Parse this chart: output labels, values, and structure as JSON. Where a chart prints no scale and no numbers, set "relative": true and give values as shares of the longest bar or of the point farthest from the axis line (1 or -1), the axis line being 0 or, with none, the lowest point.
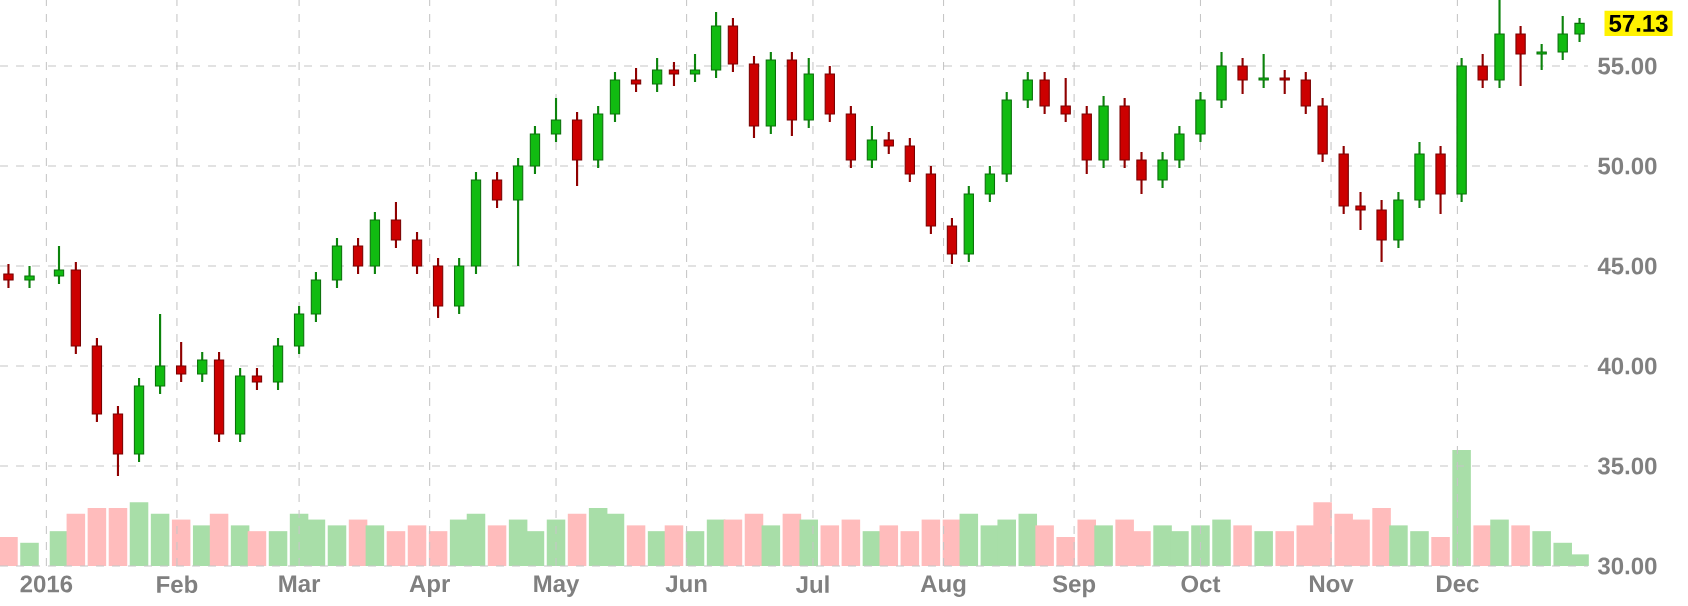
{
  "chart_data": [
    {
      "type": "candlestick",
      "x": [
        "2015-12-23",
        "2015-12-28",
        "2016-01-04",
        "2016-01-08",
        "2016-01-13",
        "2016-01-18",
        "2016-01-23",
        "2016-01-28",
        "2016-02-02",
        "2016-02-07",
        "2016-02-11",
        "2016-02-16",
        "2016-02-20",
        "2016-02-25",
        "2016-03-01",
        "2016-03-05",
        "2016-03-10",
        "2016-03-15",
        "2016-03-19",
        "2016-03-24",
        "2016-03-29",
        "2016-04-03",
        "2016-04-08",
        "2016-04-12",
        "2016-04-17",
        "2016-04-22",
        "2016-04-26",
        "2016-05-01",
        "2016-05-06",
        "2016-05-11",
        "2016-05-15",
        "2016-05-20",
        "2016-05-25",
        "2016-05-29",
        "2016-06-03",
        "2016-06-08",
        "2016-06-12",
        "2016-06-17",
        "2016-06-21",
        "2016-06-26",
        "2016-06-30",
        "2016-07-05",
        "2016-07-10",
        "2016-07-15",
        "2016-07-19",
        "2016-07-24",
        "2016-07-29",
        "2016-08-03",
        "2016-08-07",
        "2016-08-12",
        "2016-08-16",
        "2016-08-21",
        "2016-08-25",
        "2016-08-30",
        "2016-09-04",
        "2016-09-08",
        "2016-09-13",
        "2016-09-17",
        "2016-09-22",
        "2016-09-26",
        "2016-10-01",
        "2016-10-06",
        "2016-10-11",
        "2016-10-16",
        "2016-10-21",
        "2016-10-26",
        "2016-10-30",
        "2016-11-04",
        "2016-11-08",
        "2016-11-13",
        "2016-11-17",
        "2016-11-22",
        "2016-11-27",
        "2016-12-02",
        "2016-12-07",
        "2016-12-11",
        "2016-12-16",
        "2016-12-21",
        "2016-12-26",
        "2016-12-30"
      ],
      "ohlc": [
        [
          44.6,
          45.1,
          43.9,
          44.3
        ],
        [
          44.3,
          45.0,
          43.9,
          44.5
        ],
        [
          44.5,
          46.0,
          44.1,
          44.8
        ],
        [
          44.8,
          45.2,
          40.6,
          41.0
        ],
        [
          41.0,
          41.4,
          37.2,
          37.6
        ],
        [
          37.6,
          38.0,
          34.5,
          35.6
        ],
        [
          35.6,
          39.4,
          35.2,
          39.0
        ],
        [
          39.0,
          42.6,
          38.6,
          40.0
        ],
        [
          40.0,
          41.2,
          39.2,
          39.6
        ],
        [
          39.6,
          40.7,
          39.2,
          40.3
        ],
        [
          40.3,
          40.7,
          36.2,
          36.6
        ],
        [
          36.6,
          39.9,
          36.2,
          39.5
        ],
        [
          39.5,
          39.9,
          38.8,
          39.2
        ],
        [
          39.2,
          41.4,
          38.8,
          41.0
        ],
        [
          41.0,
          43.0,
          40.6,
          42.6
        ],
        [
          42.6,
          44.7,
          42.2,
          44.3
        ],
        [
          44.3,
          46.4,
          43.9,
          46.0
        ],
        [
          46.0,
          46.4,
          44.6,
          45.0
        ],
        [
          45.0,
          47.7,
          44.6,
          47.3
        ],
        [
          47.3,
          48.2,
          45.9,
          46.3
        ],
        [
          46.3,
          46.7,
          44.6,
          45.0
        ],
        [
          45.0,
          45.4,
          42.4,
          43.0
        ],
        [
          43.0,
          45.4,
          42.6,
          45.0
        ],
        [
          45.0,
          49.7,
          44.6,
          49.3
        ],
        [
          49.3,
          49.7,
          47.9,
          48.3
        ],
        [
          48.3,
          50.4,
          45.0,
          50.0
        ],
        [
          50.0,
          52.0,
          49.6,
          51.6
        ],
        [
          51.6,
          53.4,
          51.2,
          52.3
        ],
        [
          52.3,
          52.7,
          49.0,
          50.3
        ],
        [
          50.3,
          53.0,
          49.9,
          52.6
        ],
        [
          52.6,
          54.7,
          52.2,
          54.3
        ],
        [
          54.3,
          54.9,
          53.7,
          54.1
        ],
        [
          54.1,
          55.4,
          53.7,
          54.8
        ],
        [
          54.8,
          55.2,
          54.0,
          54.6
        ],
        [
          54.6,
          55.6,
          54.2,
          54.8
        ],
        [
          54.8,
          57.7,
          54.4,
          57.0
        ],
        [
          57.0,
          57.4,
          54.7,
          55.1
        ],
        [
          55.1,
          55.5,
          51.4,
          52.0
        ],
        [
          52.0,
          55.7,
          51.6,
          55.3
        ],
        [
          55.3,
          55.7,
          51.5,
          52.3
        ],
        [
          52.3,
          55.4,
          51.9,
          54.6
        ],
        [
          54.6,
          55.0,
          52.2,
          52.6
        ],
        [
          52.6,
          53.0,
          49.9,
          50.3
        ],
        [
          50.3,
          52.0,
          49.9,
          51.3
        ],
        [
          51.3,
          51.7,
          50.6,
          51.0
        ],
        [
          51.0,
          51.4,
          49.2,
          49.6
        ],
        [
          49.6,
          50.0,
          46.6,
          47.0
        ],
        [
          47.0,
          47.4,
          45.1,
          45.6
        ],
        [
          45.6,
          49.0,
          45.2,
          48.6
        ],
        [
          48.6,
          50.0,
          48.2,
          49.6
        ],
        [
          49.6,
          53.7,
          49.2,
          53.3
        ],
        [
          53.3,
          54.7,
          52.9,
          54.3
        ],
        [
          54.3,
          54.7,
          52.6,
          53.0
        ],
        [
          53.0,
          54.4,
          52.2,
          52.6
        ],
        [
          52.6,
          53.0,
          49.6,
          50.3
        ],
        [
          50.3,
          53.5,
          49.9,
          53.0
        ],
        [
          53.0,
          53.4,
          49.9,
          50.3
        ],
        [
          50.3,
          50.7,
          48.6,
          49.3
        ],
        [
          49.3,
          50.7,
          48.9,
          50.3
        ],
        [
          50.3,
          52.0,
          49.9,
          51.6
        ],
        [
          51.6,
          53.7,
          51.2,
          53.3
        ],
        [
          53.3,
          55.7,
          52.9,
          55.0
        ],
        [
          55.0,
          55.4,
          53.6,
          54.3
        ],
        [
          54.3,
          55.6,
          53.9,
          54.4
        ],
        [
          54.4,
          54.8,
          53.6,
          54.3
        ],
        [
          54.3,
          54.7,
          52.6,
          53.0
        ],
        [
          53.0,
          53.4,
          50.2,
          50.6
        ],
        [
          50.6,
          51.0,
          47.6,
          48.0
        ],
        [
          48.0,
          48.7,
          46.8,
          47.8
        ],
        [
          47.8,
          48.3,
          45.2,
          46.3
        ],
        [
          46.3,
          48.7,
          45.9,
          48.3
        ],
        [
          48.3,
          51.2,
          47.9,
          50.6
        ],
        [
          50.6,
          51.0,
          47.6,
          48.6
        ],
        [
          48.6,
          55.4,
          48.2,
          55.0
        ],
        [
          55.0,
          55.6,
          53.9,
          54.3
        ],
        [
          54.3,
          58.3,
          53.9,
          56.6
        ],
        [
          56.6,
          57.0,
          54.0,
          55.6
        ],
        [
          55.6,
          56.1,
          54.8,
          55.7
        ],
        [
          55.7,
          57.5,
          55.3,
          56.6
        ],
        [
          56.6,
          57.4,
          56.2,
          57.13
        ]
      ],
      "colors": [
        "#cc0000",
        "#11bb11",
        "#11bb11",
        "#cc0000",
        "#cc0000",
        "#cc0000",
        "#11bb11",
        "#11bb11",
        "#cc0000",
        "#11bb11",
        "#cc0000",
        "#11bb11",
        "#cc0000",
        "#11bb11",
        "#11bb11",
        "#11bb11",
        "#11bb11",
        "#cc0000",
        "#11bb11",
        "#cc0000",
        "#cc0000",
        "#cc0000",
        "#11bb11",
        "#11bb11",
        "#cc0000",
        "#11bb11",
        "#11bb11",
        "#11bb11",
        "#cc0000",
        "#11bb11",
        "#11bb11",
        "#cc0000",
        "#11bb11",
        "#cc0000",
        "#11bb11",
        "#11bb11",
        "#cc0000",
        "#cc0000",
        "#11bb11",
        "#cc0000",
        "#11bb11",
        "#cc0000",
        "#cc0000",
        "#11bb11",
        "#cc0000",
        "#cc0000",
        "#cc0000",
        "#cc0000",
        "#11bb11",
        "#11bb11",
        "#11bb11",
        "#11bb11",
        "#cc0000",
        "#cc0000",
        "#cc0000",
        "#11bb11",
        "#cc0000",
        "#cc0000",
        "#11bb11",
        "#11bb11",
        "#11bb11",
        "#11bb11",
        "#cc0000",
        "#11bb11",
        "#cc0000",
        "#cc0000",
        "#cc0000",
        "#cc0000",
        "#cc0000",
        "#cc0000",
        "#11bb11",
        "#11bb11",
        "#cc0000",
        "#11bb11",
        "#cc0000",
        "#11bb11",
        "#cc0000",
        "#11bb11",
        "#11bb11",
        "#11bb11"
      ],
      "xlim": [
        "2015-12-21",
        "2017-01-01"
      ],
      "xticks": [
        {
          "value": "2016-01-01",
          "label": "2016"
        },
        {
          "value": "2016-02-01",
          "label": "Feb"
        },
        {
          "value": "2016-03-01",
          "label": "Mar"
        },
        {
          "value": "2016-04-01",
          "label": "Apr"
        },
        {
          "value": "2016-05-01",
          "label": "May"
        },
        {
          "value": "2016-06-01",
          "label": "Jun"
        },
        {
          "value": "2016-07-01",
          "label": "Jul"
        },
        {
          "value": "2016-08-01",
          "label": "Aug"
        },
        {
          "value": "2016-09-01",
          "label": "Sep"
        },
        {
          "value": "2016-10-01",
          "label": "Oct"
        },
        {
          "value": "2016-11-01",
          "label": "Nov"
        },
        {
          "value": "2016-12-01",
          "label": "Dec"
        }
      ],
      "ylim": [
        30,
        58.3
      ],
      "yticks": [
        {
          "value": 30,
          "label": "30.00"
        },
        {
          "value": 35,
          "label": "35.00"
        },
        {
          "value": 40,
          "label": "40.00"
        },
        {
          "value": 45,
          "label": "45.00"
        },
        {
          "value": 50,
          "label": "50.00"
        },
        {
          "value": 55,
          "label": "55.00"
        }
      ],
      "grid": true,
      "annotations": [
        "57.13"
      ]
    },
    {
      "type": "bar",
      "relative": true,
      "x": [
        "2015-12-23",
        "2015-12-28",
        "2016-01-04",
        "2016-01-08",
        "2016-01-13",
        "2016-01-18",
        "2016-01-23",
        "2016-01-28",
        "2016-02-02",
        "2016-02-07",
        "2016-02-11",
        "2016-02-16",
        "2016-02-20",
        "2016-02-25",
        "2016-03-01",
        "2016-03-05",
        "2016-03-10",
        "2016-03-15",
        "2016-03-19",
        "2016-03-24",
        "2016-03-29",
        "2016-04-03",
        "2016-04-08",
        "2016-04-12",
        "2016-04-17",
        "2016-04-22",
        "2016-04-26",
        "2016-05-01",
        "2016-05-06",
        "2016-05-11",
        "2016-05-15",
        "2016-05-20",
        "2016-05-25",
        "2016-05-29",
        "2016-06-03",
        "2016-06-08",
        "2016-06-12",
        "2016-06-17",
        "2016-06-21",
        "2016-06-26",
        "2016-06-30",
        "2016-07-05",
        "2016-07-10",
        "2016-07-15",
        "2016-07-19",
        "2016-07-24",
        "2016-07-29",
        "2016-08-03",
        "2016-08-07",
        "2016-08-12",
        "2016-08-16",
        "2016-08-21",
        "2016-08-25",
        "2016-08-30",
        "2016-09-04",
        "2016-09-08",
        "2016-09-13",
        "2016-09-17",
        "2016-09-22",
        "2016-09-26",
        "2016-10-01",
        "2016-10-06",
        "2016-10-11",
        "2016-10-16",
        "2016-10-21",
        "2016-10-26",
        "2016-10-30",
        "2016-11-04",
        "2016-11-08",
        "2016-11-13",
        "2016-11-17",
        "2016-11-22",
        "2016-11-27",
        "2016-12-02",
        "2016-12-07",
        "2016-12-11",
        "2016-12-16",
        "2016-12-21",
        "2016-12-26",
        "2016-12-30"
      ],
      "values": [
        0.25,
        0.2,
        0.3,
        0.45,
        0.5,
        0.5,
        0.55,
        0.45,
        0.4,
        0.35,
        0.45,
        0.35,
        0.3,
        0.3,
        0.45,
        0.4,
        0.35,
        0.4,
        0.35,
        0.3,
        0.35,
        0.3,
        0.4,
        0.45,
        0.35,
        0.4,
        0.3,
        0.4,
        0.45,
        0.5,
        0.45,
        0.35,
        0.3,
        0.35,
        0.3,
        0.4,
        0.4,
        0.45,
        0.35,
        0.45,
        0.4,
        0.35,
        0.4,
        0.3,
        0.35,
        0.3,
        0.4,
        0.4,
        0.45,
        0.35,
        0.4,
        0.45,
        0.35,
        0.25,
        0.4,
        0.35,
        0.4,
        0.3,
        0.35,
        0.3,
        0.35,
        0.4,
        0.35,
        0.3,
        0.3,
        0.35,
        0.55,
        0.45,
        0.4,
        0.5,
        0.35,
        0.3,
        0.25,
        1,
        0.35,
        0.4,
        0.35,
        0.3,
        0.2,
        0.1
      ],
      "colors": [
        "#ffbcbc",
        "#a8dea8",
        "#a8dea8",
        "#ffbcbc",
        "#ffbcbc",
        "#ffbcbc",
        "#a8dea8",
        "#a8dea8",
        "#ffbcbc",
        "#a8dea8",
        "#ffbcbc",
        "#a8dea8",
        "#ffbcbc",
        "#a8dea8",
        "#a8dea8",
        "#a8dea8",
        "#a8dea8",
        "#ffbcbc",
        "#a8dea8",
        "#ffbcbc",
        "#ffbcbc",
        "#ffbcbc",
        "#a8dea8",
        "#a8dea8",
        "#ffbcbc",
        "#a8dea8",
        "#a8dea8",
        "#a8dea8",
        "#ffbcbc",
        "#a8dea8",
        "#a8dea8",
        "#ffbcbc",
        "#a8dea8",
        "#ffbcbc",
        "#a8dea8",
        "#a8dea8",
        "#ffbcbc",
        "#ffbcbc",
        "#a8dea8",
        "#ffbcbc",
        "#a8dea8",
        "#ffbcbc",
        "#ffbcbc",
        "#a8dea8",
        "#ffbcbc",
        "#ffbcbc",
        "#ffbcbc",
        "#ffbcbc",
        "#a8dea8",
        "#a8dea8",
        "#a8dea8",
        "#a8dea8",
        "#ffbcbc",
        "#ffbcbc",
        "#ffbcbc",
        "#a8dea8",
        "#ffbcbc",
        "#ffbcbc",
        "#a8dea8",
        "#a8dea8",
        "#a8dea8",
        "#a8dea8",
        "#ffbcbc",
        "#a8dea8",
        "#ffbcbc",
        "#ffbcbc",
        "#ffbcbc",
        "#ffbcbc",
        "#ffbcbc",
        "#ffbcbc",
        "#a8dea8",
        "#a8dea8",
        "#ffbcbc",
        "#a8dea8",
        "#ffbcbc",
        "#a8dea8",
        "#ffbcbc",
        "#a8dea8",
        "#a8dea8",
        "#a8dea8"
      ],
      "xlim": [
        "2015-12-21",
        "2017-01-01"
      ]
    }
  ]
}
